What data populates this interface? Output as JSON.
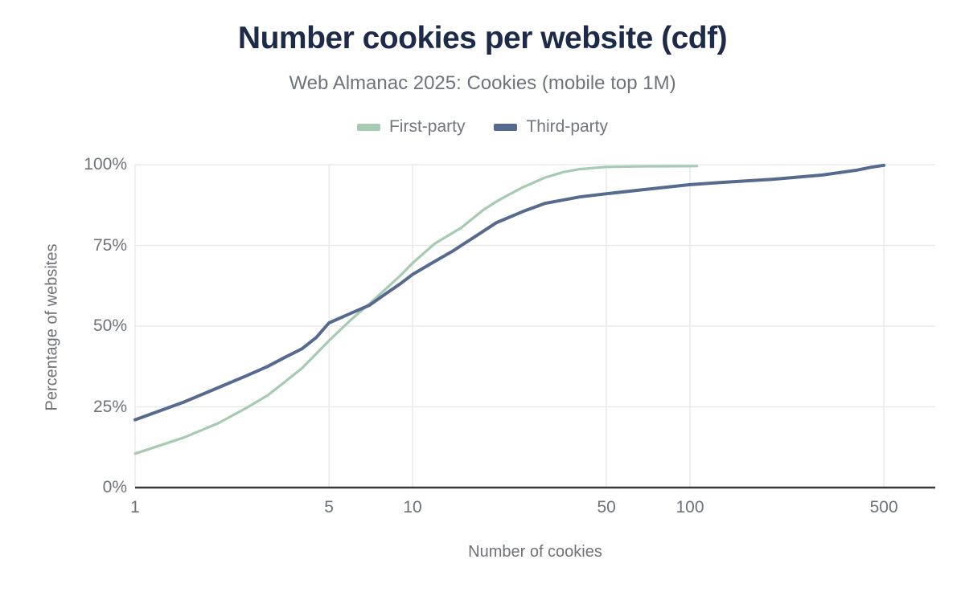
{
  "chart_data": {
    "type": "line",
    "title": "Number cookies per website (cdf)",
    "subtitle": "Web Almanac 2025: Cookies (mobile top 1M)",
    "xlabel": "Number of cookies",
    "ylabel": "Percentage of websites",
    "x_scale": "log",
    "grid": true,
    "legend_position": "top",
    "x_range": [
      1,
      766
    ],
    "y_range": [
      0,
      100
    ],
    "x_ticks": [
      {
        "value": 1,
        "label": "1"
      },
      {
        "value": 5,
        "label": "5"
      },
      {
        "value": 10,
        "label": "10"
      },
      {
        "value": 50,
        "label": "50"
      },
      {
        "value": 100,
        "label": "100"
      },
      {
        "value": 500,
        "label": "500"
      }
    ],
    "y_ticks": [
      {
        "value": 0,
        "label": "0%"
      },
      {
        "value": 25,
        "label": "25%"
      },
      {
        "value": 50,
        "label": "50%"
      },
      {
        "value": 75,
        "label": "75%"
      },
      {
        "value": 100,
        "label": "100%"
      }
    ],
    "series": [
      {
        "name": "First-party",
        "color": "#a6cbb2",
        "points": [
          [
            1,
            10.5
          ],
          [
            1.5,
            15.5
          ],
          [
            2,
            20
          ],
          [
            2.5,
            24.5
          ],
          [
            3,
            28.5
          ],
          [
            3.5,
            33
          ],
          [
            4,
            37
          ],
          [
            4.5,
            41.5
          ],
          [
            5,
            45.5
          ],
          [
            6,
            52
          ],
          [
            7,
            57
          ],
          [
            8,
            61.5
          ],
          [
            9,
            65.5
          ],
          [
            10,
            69.5
          ],
          [
            12,
            75.5
          ],
          [
            15,
            80.5
          ],
          [
            18,
            86
          ],
          [
            20,
            88.5
          ],
          [
            22,
            90.5
          ],
          [
            25,
            93
          ],
          [
            30,
            96
          ],
          [
            35,
            97.7
          ],
          [
            40,
            98.6
          ],
          [
            50,
            99.3
          ],
          [
            65,
            99.45
          ],
          [
            80,
            99.5
          ],
          [
            106,
            99.55
          ]
        ]
      },
      {
        "name": "Third-party",
        "color": "#56698e",
        "points": [
          [
            1,
            21
          ],
          [
            1.5,
            26.5
          ],
          [
            2,
            31
          ],
          [
            2.5,
            34.5
          ],
          [
            3,
            37.5
          ],
          [
            3.5,
            40.5
          ],
          [
            4,
            43
          ],
          [
            4.5,
            46.5
          ],
          [
            5,
            51
          ],
          [
            6,
            54
          ],
          [
            7,
            56.5
          ],
          [
            8,
            60
          ],
          [
            9,
            63
          ],
          [
            10,
            66
          ],
          [
            12,
            70
          ],
          [
            14,
            73.3
          ],
          [
            15,
            75
          ],
          [
            17,
            78
          ],
          [
            20,
            82
          ],
          [
            25,
            85.5
          ],
          [
            30,
            88
          ],
          [
            40,
            90
          ],
          [
            50,
            91
          ],
          [
            70,
            92.4
          ],
          [
            100,
            93.8
          ],
          [
            130,
            94.5
          ],
          [
            200,
            95.5
          ],
          [
            300,
            96.8
          ],
          [
            400,
            98.3
          ],
          [
            450,
            99.2
          ],
          [
            500,
            99.8
          ]
        ]
      }
    ],
    "colors": {
      "title": "#1e2a49",
      "subtitle": "#6e737c",
      "tick_text": "#6e7277",
      "gridline": "#eaeaea",
      "axis_line": "#38383d"
    }
  }
}
